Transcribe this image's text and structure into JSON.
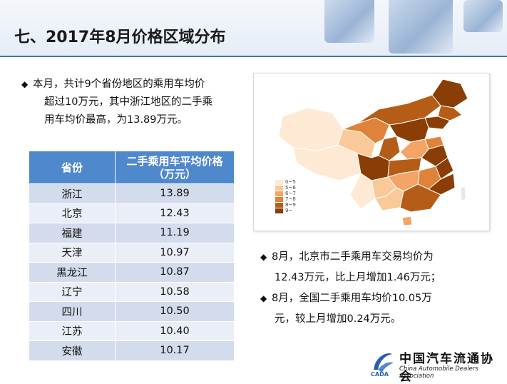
{
  "header": {
    "title": "七、2017年8月价格区域分布"
  },
  "intro": {
    "lines": [
      "本月，共计9个省份地区的乘用车均价",
      "超过10万元，其中浙江地区的二手乘",
      "用车均价最高，为13.89万元。"
    ]
  },
  "table": {
    "col_province": "省份",
    "col_price_line1": "二手乘用车平均价格",
    "col_price_line2": "（万元）",
    "rows": [
      {
        "province": "浙江",
        "price": "13.89"
      },
      {
        "province": "北京",
        "price": "12.43"
      },
      {
        "province": "福建",
        "price": "11.19"
      },
      {
        "province": "天津",
        "price": "10.97"
      },
      {
        "province": "黑龙江",
        "price": "10.87"
      },
      {
        "province": "辽宁",
        "price": "10.58"
      },
      {
        "province": "四川",
        "price": "10.50"
      },
      {
        "province": "江苏",
        "price": "10.40"
      },
      {
        "province": "安徽",
        "price": "10.17"
      }
    ]
  },
  "map": {
    "legend": [
      {
        "label": "0~5",
        "color": "#fde9d4"
      },
      {
        "label": "5~6",
        "color": "#f9c999"
      },
      {
        "label": "6~7",
        "color": "#f3a466"
      },
      {
        "label": "7~8",
        "color": "#e0823a"
      },
      {
        "label": "8~9",
        "color": "#b55d16"
      },
      {
        "label": "9~",
        "color": "#8a3d05"
      }
    ]
  },
  "notes": {
    "line1": "8月，北京市二手乘用车交易均价为",
    "line2": "12.43万元，比上月增加1.46万元；",
    "line3": "8月，全国二手乘用车均价10.05万",
    "line4": "元，较上月增加0.24万元。"
  },
  "logo": {
    "cn": "中国汽车流通协会",
    "en": "China Automobile Dealers Association",
    "abbr": "CADA"
  }
}
